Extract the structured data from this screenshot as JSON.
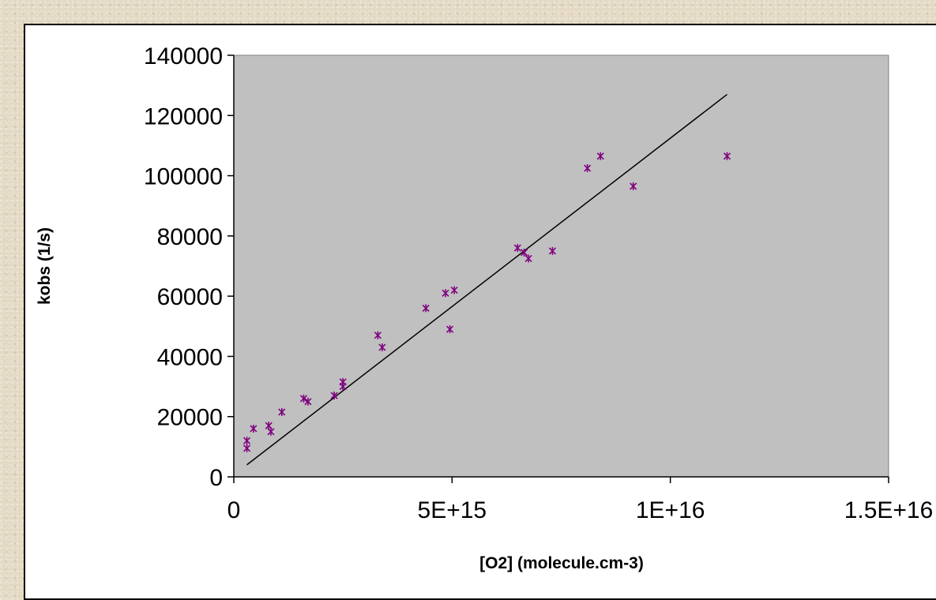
{
  "chart_data": {
    "type": "scatter",
    "title": "",
    "xlabel": "[O2] (molecule.cm-3)",
    "ylabel": "kobs (1/s)",
    "xlim": [
      0,
      15000000000000000
    ],
    "ylim": [
      0,
      140000
    ],
    "x_ticks": [
      0,
      5000000000000000,
      10000000000000000,
      15000000000000000
    ],
    "x_tick_labels": [
      "0",
      "5E+15",
      "1E+16",
      "1.5E+16"
    ],
    "y_ticks": [
      0,
      20000,
      40000,
      60000,
      80000,
      100000,
      120000,
      140000
    ],
    "y_tick_labels": [
      "0",
      "20000",
      "40000",
      "60000",
      "80000",
      "100000",
      "120000",
      "140000"
    ],
    "grid": false,
    "legend": "none",
    "plot_background": "#c0c0c0",
    "marker_color": "#800080",
    "marker": "asterisk",
    "series": [
      {
        "points": [
          [
            300000000000000,
            12000
          ],
          [
            300000000000000,
            9500
          ],
          [
            450000000000000,
            16000
          ],
          [
            800000000000000,
            17000
          ],
          [
            850000000000000,
            15000
          ],
          [
            1100000000000000,
            21500
          ],
          [
            1600000000000000,
            26000
          ],
          [
            1700000000000000,
            25000
          ],
          [
            2300000000000000,
            27000
          ],
          [
            2500000000000000,
            30000
          ],
          [
            2500000000000000,
            31500
          ],
          [
            3300000000000000,
            47000
          ],
          [
            3400000000000000,
            43000
          ],
          [
            4400000000000000,
            56000
          ],
          [
            4850000000000000,
            61000
          ],
          [
            4950000000000000,
            49000
          ],
          [
            5050000000000000,
            62000
          ],
          [
            6500000000000000,
            76000
          ],
          [
            6650000000000000,
            74500
          ],
          [
            6750000000000000,
            72500
          ],
          [
            7300000000000000,
            75000
          ],
          [
            8100000000000000,
            102500
          ],
          [
            8400000000000000,
            106500
          ],
          [
            9150000000000000,
            96500
          ],
          [
            11300000000000000,
            106500
          ]
        ]
      }
    ],
    "trendline": {
      "type": "linear",
      "color": "#000000",
      "start": [
        300000000000000,
        4000
      ],
      "end": [
        11300000000000000,
        127000
      ]
    }
  }
}
